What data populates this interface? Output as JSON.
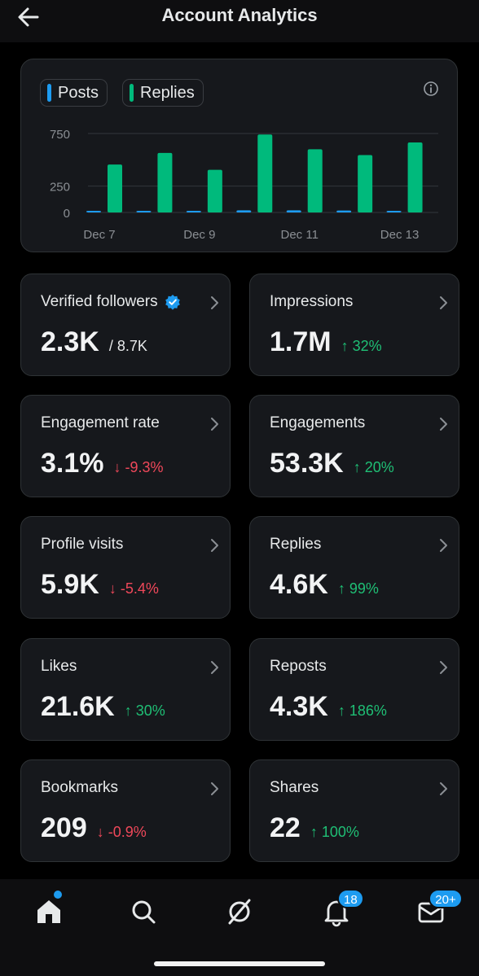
{
  "header": {
    "title": "Account Analytics",
    "back_icon": "arrow-left-icon"
  },
  "chart": {
    "legend": [
      {
        "label": "Posts",
        "color": "#1d9bf0"
      },
      {
        "label": "Replies",
        "color": "#00ba7c"
      }
    ],
    "info_icon": "info-icon"
  },
  "chart_data": {
    "type": "bar",
    "categories": [
      "Dec 7",
      "Dec 8",
      "Dec 9",
      "Dec 10",
      "Dec 11",
      "Dec 12",
      "Dec 13"
    ],
    "x_tick_labels": [
      "Dec 7",
      "Dec 9",
      "Dec 11",
      "Dec 13"
    ],
    "series": [
      {
        "name": "Posts",
        "color": "#1d9bf0",
        "values": [
          15,
          15,
          15,
          20,
          20,
          18,
          15
        ]
      },
      {
        "name": "Replies",
        "color": "#00ba7c",
        "values": [
          455,
          565,
          405,
          740,
          600,
          545,
          665
        ]
      }
    ],
    "y_ticks": [
      0,
      250,
      750
    ],
    "ylim": [
      0,
      800
    ],
    "grid": true,
    "legend_position": "top-left"
  },
  "tiles": [
    {
      "label": "Verified followers",
      "value": "2.3K",
      "sub": "/ 8.7K",
      "trend": "neutral",
      "verified_icon": "verified-badge-icon"
    },
    {
      "label": "Impressions",
      "value": "1.7M",
      "sub": "↑ 32%",
      "trend": "up"
    },
    {
      "label": "Engagement rate",
      "value": "3.1%",
      "sub": "↓ -9.3%",
      "trend": "down"
    },
    {
      "label": "Engagements",
      "value": "53.3K",
      "sub": "↑ 20%",
      "trend": "up"
    },
    {
      "label": "Profile visits",
      "value": "5.9K",
      "sub": "↓ -5.4%",
      "trend": "down"
    },
    {
      "label": "Replies",
      "value": "4.6K",
      "sub": "↑ 99%",
      "trend": "up"
    },
    {
      "label": "Likes",
      "value": "21.6K",
      "sub": "↑ 30%",
      "trend": "up"
    },
    {
      "label": "Reposts",
      "value": "4.3K",
      "sub": "↑ 186%",
      "trend": "up"
    },
    {
      "label": "Bookmarks",
      "value": "209",
      "sub": "↓ -0.9%",
      "trend": "down"
    },
    {
      "label": "Shares",
      "value": "22",
      "sub": "↑ 100%",
      "trend": "up"
    }
  ],
  "tabbar": {
    "items": [
      {
        "icon": "home-icon"
      },
      {
        "icon": "search-icon"
      },
      {
        "icon": "grok-icon"
      },
      {
        "icon": "bell-icon",
        "badge": "18"
      },
      {
        "icon": "mail-icon",
        "badge": "20+"
      }
    ]
  },
  "colors": {
    "accent": "#1d9bf0",
    "up": "#1fbf75",
    "down": "#f0485a",
    "card_bg": "#16181c"
  }
}
